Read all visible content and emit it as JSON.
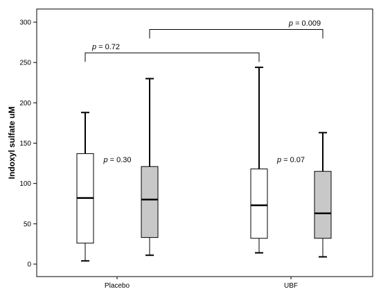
{
  "chart_data": {
    "type": "box",
    "title": "",
    "xlabel": "",
    "ylabel": "Indoxyl sulfate uM",
    "ylim": [
      0,
      310
    ],
    "yticks": [
      0,
      50,
      100,
      150,
      200,
      250,
      300
    ],
    "categories": [
      "Placebo",
      "UBF"
    ],
    "grid": false,
    "boxes": [
      {
        "category": "Placebo",
        "fill": "#ffffff",
        "whisker_low": 4,
        "q1": 26,
        "median": 82,
        "q3": 137,
        "whisker_high": 188
      },
      {
        "category": "Placebo",
        "fill": "#c8c8c8",
        "whisker_low": 11,
        "q1": 33,
        "median": 80,
        "q3": 121,
        "whisker_high": 230
      },
      {
        "category": "UBF",
        "fill": "#ffffff",
        "whisker_low": 14,
        "q1": 32,
        "median": 73,
        "q3": 118,
        "whisker_high": 244
      },
      {
        "category": "UBF",
        "fill": "#c8c8c8",
        "whisker_low": 9,
        "q1": 32,
        "median": 63,
        "q3": 115,
        "whisker_high": 163
      }
    ],
    "annotations": [
      {
        "prefix": "p",
        "text": " = 0.30",
        "between_boxes": [
          0,
          1
        ],
        "y": 130
      },
      {
        "prefix": "p",
        "text": " = 0.07",
        "between_boxes": [
          2,
          3
        ],
        "y": 130
      },
      {
        "prefix": "p",
        "text": " = 0.72",
        "bracket_boxes": [
          0,
          2
        ],
        "bracket_y": 262,
        "y": 270
      },
      {
        "prefix": "p",
        "text": " = 0.009",
        "bracket_boxes": [
          1,
          3
        ],
        "bracket_y": 291,
        "y": 299
      }
    ]
  }
}
